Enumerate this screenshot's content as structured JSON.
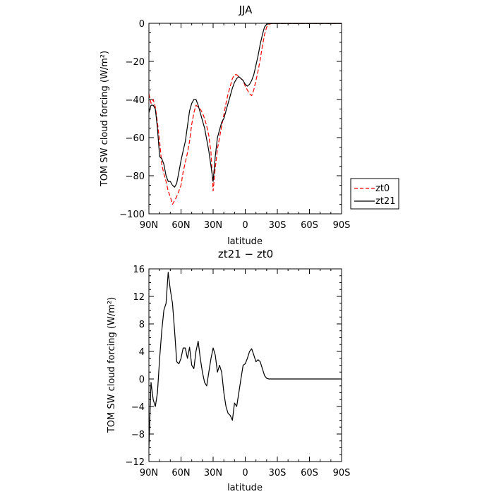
{
  "chart_data": [
    {
      "type": "line",
      "title": "JJA",
      "xlabel": "latitude",
      "ylabel": "TOM SW cloud forcing (W/m²)",
      "xlim": [
        90,
        -90
      ],
      "ylim": [
        -100,
        0
      ],
      "xtick_values": [
        90,
        60,
        30,
        0,
        -30,
        -60,
        -90
      ],
      "xtick_labels": [
        "90N",
        "60N",
        "30N",
        "0",
        "30S",
        "60S",
        "90S"
      ],
      "ytick_values": [
        0,
        -20,
        -40,
        -60,
        -80,
        -100
      ],
      "ytick_labels": [
        "0",
        "−20",
        "−40",
        "−60",
        "−80",
        "−100"
      ],
      "legend_position": "right",
      "series": [
        {
          "name": "zt0",
          "color": "#ff0000",
          "style": "dashed",
          "x": [
            90,
            88,
            86,
            84,
            82,
            80,
            78,
            76,
            74,
            72,
            70,
            68,
            66,
            64,
            62,
            60,
            58,
            56,
            54,
            52,
            50,
            48,
            46,
            44,
            42,
            40,
            38,
            36,
            34,
            32,
            30,
            28,
            26,
            24,
            22,
            20,
            18,
            16,
            14,
            12,
            10,
            8,
            6,
            4,
            2,
            0,
            -2,
            -4,
            -6,
            -8,
            -10,
            -12,
            -14,
            -16,
            -18,
            -20,
            -22,
            -24,
            -26,
            -28,
            -30,
            -32,
            -34,
            -36,
            -38,
            -40,
            -42,
            -44,
            -46,
            -48,
            -50,
            -52,
            -54,
            -56,
            -58,
            -60,
            -62,
            -64,
            -66,
            -68,
            -70,
            -72,
            -74,
            -76,
            -78,
            -80,
            -82,
            -84,
            -86,
            -88,
            -90
          ],
          "y": [
            -37,
            -42,
            -40,
            -44,
            -52,
            -62,
            -74,
            -79,
            -83,
            -88,
            -91,
            -95,
            -93,
            -91,
            -88,
            -85,
            -78,
            -73,
            -68,
            -62,
            -53,
            -47,
            -43,
            -44,
            -45,
            -47,
            -50,
            -54,
            -59,
            -68,
            -88,
            -76,
            -66,
            -60,
            -54,
            -48,
            -42,
            -37,
            -33,
            -29,
            -27,
            -27,
            -28,
            -29,
            -30,
            -33,
            -35,
            -37,
            -38,
            -35,
            -30,
            -25,
            -19,
            -12,
            -6,
            -2,
            -0.5,
            -0.2,
            -0.1,
            -0.1,
            -0.1,
            -0.1,
            -0.1,
            -0.1,
            -0.1,
            -0.1,
            -0.1,
            -0.1,
            -0.1,
            -0.1,
            -0.1,
            -0.1,
            -0.1,
            -0.1,
            -0.1,
            -0.1,
            -0.1,
            -0.1,
            -0.1,
            -0.1,
            -0.1,
            -0.1,
            -0.1,
            -0.1,
            -0.1,
            -0.1,
            -0.1,
            -0.1,
            -0.1,
            -0.1,
            -0.1
          ]
        },
        {
          "name": "zt21",
          "color": "#000000",
          "style": "solid",
          "x": [
            90,
            88,
            86,
            84,
            82,
            80,
            78,
            76,
            74,
            72,
            70,
            68,
            66,
            64,
            62,
            60,
            58,
            56,
            54,
            52,
            50,
            48,
            46,
            44,
            42,
            40,
            38,
            36,
            34,
            32,
            30,
            28,
            26,
            24,
            22,
            20,
            18,
            16,
            14,
            12,
            10,
            8,
            6,
            4,
            2,
            0,
            -2,
            -4,
            -6,
            -8,
            -10,
            -12,
            -14,
            -16,
            -18,
            -20,
            -22,
            -24,
            -26,
            -28,
            -30,
            -32,
            -34,
            -36,
            -38,
            -40,
            -42,
            -44,
            -46,
            -48,
            -50,
            -52,
            -54,
            -56,
            -58,
            -60,
            -62,
            -64,
            -66,
            -68,
            -70,
            -72,
            -74,
            -76,
            -78,
            -80,
            -82,
            -84,
            -86,
            -88,
            -90
          ],
          "y": [
            -47,
            -43,
            -43,
            -45,
            -55,
            -70,
            -71,
            -74,
            -80,
            -83,
            -83,
            -85,
            -86,
            -84,
            -78,
            -72,
            -67,
            -62,
            -54,
            -46,
            -42,
            -40,
            -40,
            -43,
            -47,
            -51,
            -55,
            -61,
            -67,
            -75,
            -83,
            -70,
            -60,
            -56,
            -52,
            -50,
            -46,
            -42,
            -38,
            -34,
            -31,
            -29,
            -28,
            -29,
            -30,
            -32,
            -33,
            -32,
            -30,
            -27,
            -22,
            -17,
            -11,
            -6,
            -2,
            -0.5,
            -0.2,
            -0.1,
            -0.1,
            -0.1,
            -0.1,
            -0.1,
            -0.1,
            -0.1,
            -0.1,
            -0.1,
            -0.1,
            -0.1,
            -0.1,
            -0.1,
            -0.1,
            -0.1,
            -0.1,
            -0.1,
            -0.1,
            -0.1,
            -0.1,
            -0.1,
            -0.1,
            -0.1,
            -0.1,
            -0.1,
            -0.1,
            -0.1,
            -0.1,
            -0.1,
            -0.1,
            -0.1,
            -0.1,
            -0.1,
            -0.1
          ]
        }
      ]
    },
    {
      "type": "line",
      "title": "zt21 − zt0",
      "xlabel": "latitude",
      "ylabel": "TOM SW cloud forcing (W/m²)",
      "xlim": [
        90,
        -90
      ],
      "ylim": [
        -12,
        16
      ],
      "xtick_values": [
        90,
        60,
        30,
        0,
        -30,
        -60,
        -90
      ],
      "xtick_labels": [
        "90N",
        "60N",
        "30N",
        "0",
        "30S",
        "60S",
        "90S"
      ],
      "ytick_values": [
        16,
        12,
        8,
        4,
        0,
        -4,
        -8,
        -12
      ],
      "ytick_labels": [
        "16",
        "12",
        "8",
        "4",
        "0",
        "−4",
        "−8",
        "−12"
      ],
      "series": [
        {
          "color": "#000000",
          "style": "solid",
          "x": [
            90,
            88,
            86,
            84,
            82,
            80,
            78,
            76,
            74,
            72,
            70,
            68,
            66,
            64,
            62,
            60,
            58,
            56,
            54,
            52,
            50,
            48,
            46,
            44,
            42,
            40,
            38,
            36,
            34,
            32,
            30,
            28,
            26,
            24,
            22,
            20,
            18,
            16,
            14,
            12,
            10,
            8,
            6,
            4,
            2,
            0,
            -2,
            -4,
            -6,
            -8,
            -10,
            -12,
            -14,
            -16,
            -18,
            -20,
            -22,
            -24,
            -26,
            -28,
            -30,
            -32,
            -34,
            -36,
            -38,
            -40,
            -42,
            -44,
            -46,
            -48,
            -50,
            -52,
            -54,
            -56,
            -58,
            -60,
            -62,
            -64,
            -66,
            -68,
            -70,
            -72,
            -74,
            -76,
            -78,
            -80,
            -82,
            -84,
            -86,
            -88,
            -90
          ],
          "y": [
            -10,
            -0.5,
            -3,
            -4,
            -2,
            3,
            7,
            10,
            11,
            15.5,
            13,
            11,
            7,
            2.5,
            2.2,
            3,
            4.5,
            4.5,
            3,
            4.6,
            2,
            1.5,
            4,
            5.5,
            3,
            1,
            -0.5,
            -1,
            1,
            3,
            4.5,
            3.5,
            1,
            2,
            1,
            -2,
            -4,
            -5,
            -5.3,
            -6,
            -3.5,
            -4,
            -2,
            0,
            2,
            2.2,
            3,
            4,
            4.4,
            3.5,
            2.5,
            2.8,
            2.5,
            1.5,
            0.5,
            0.1,
            0,
            0,
            0,
            0,
            0,
            0,
            0,
            0,
            0,
            0,
            0,
            0,
            0,
            0,
            0,
            0,
            0,
            0,
            0,
            0,
            0,
            0,
            0,
            0,
            0,
            0,
            0,
            0,
            0,
            0,
            0,
            0,
            0,
            0,
            0
          ]
        }
      ]
    }
  ]
}
